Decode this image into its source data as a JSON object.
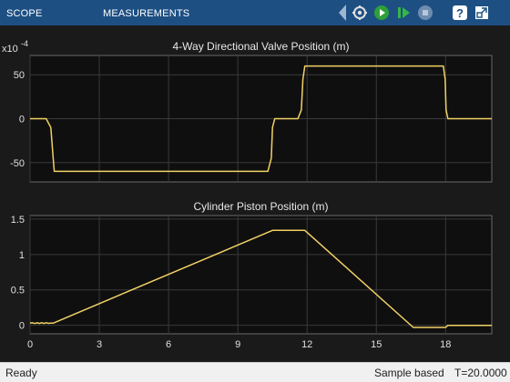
{
  "toolbar": {
    "tabs": [
      {
        "label": "SCOPE"
      },
      {
        "label": "MEASUREMENTS"
      }
    ],
    "tools": [
      {
        "name": "settings-icon"
      },
      {
        "name": "run-icon"
      },
      {
        "name": "step-forward-icon"
      },
      {
        "name": "stop-icon"
      },
      {
        "name": "help-icon"
      },
      {
        "name": "undock-icon"
      }
    ],
    "bg_color": "#1d4f83",
    "run_color": "#2e9f3a"
  },
  "status": {
    "left": "Ready",
    "mode": "Sample based",
    "time": "T=20.0000"
  },
  "chart_data": [
    {
      "type": "line",
      "title": "4-Way Directional Valve Position (m)",
      "exponent_label": "x10",
      "exponent_sup": "-4",
      "x_ticks": [
        "0",
        "3",
        "6",
        "9",
        "12",
        "15",
        "18"
      ],
      "y_ticks": [
        "50",
        "0",
        "-50"
      ],
      "xlim": [
        0,
        20
      ],
      "ylim": [
        -72,
        72
      ],
      "grid": true,
      "line_color": "#f2d165",
      "series": [
        {
          "x": [
            0,
            0.7,
            0.9,
            1.0,
            1.05,
            10.3,
            10.45,
            10.5,
            10.6,
            11.6,
            11.75,
            11.82,
            11.9,
            17.9,
            17.98,
            18.02,
            18.1,
            20
          ],
          "y": [
            0,
            0,
            -10,
            -45,
            -60,
            -60,
            -45,
            -10,
            0,
            0,
            10,
            45,
            60,
            60,
            45,
            10,
            0,
            0
          ]
        }
      ]
    },
    {
      "type": "line",
      "title": "Cylinder Piston Position (m)",
      "x_ticks": [
        "0",
        "3",
        "6",
        "9",
        "12",
        "15",
        "18"
      ],
      "y_ticks": [
        "1.5",
        "1",
        "0.5",
        "0"
      ],
      "xlim": [
        0,
        20
      ],
      "ylim": [
        -0.12,
        1.55
      ],
      "grid": true,
      "line_color": "#f2d165",
      "series": [
        {
          "x": [
            0,
            0.1,
            0.2,
            0.3,
            0.4,
            0.5,
            0.6,
            0.7,
            0.8,
            0.9,
            1.0,
            10.5,
            11.9,
            16.6,
            16.8,
            18.0,
            18.1,
            18.4,
            20
          ],
          "y": [
            0.03,
            0.035,
            0.025,
            0.036,
            0.026,
            0.036,
            0.026,
            0.036,
            0.028,
            0.032,
            0.03,
            1.34,
            1.34,
            -0.03,
            -0.03,
            -0.03,
            0.0,
            0.0,
            0.0
          ]
        }
      ]
    }
  ]
}
